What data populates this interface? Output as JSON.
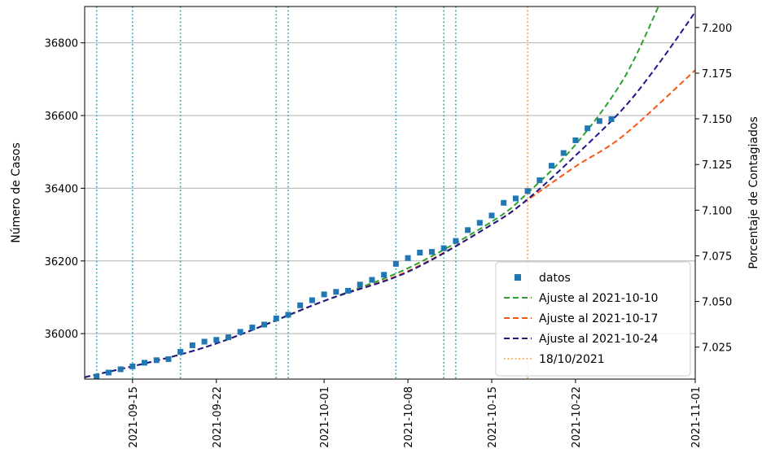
{
  "chart_data": {
    "type": "line",
    "ylabel": "Número de Casos",
    "y2label": "Porcentaje de Contagiados",
    "x_range": [
      "2021-09-11",
      "2021-11-01"
    ],
    "ylim": [
      35875,
      36900
    ],
    "y2lim": [
      7.0075,
      7.2115
    ],
    "x_ticks": [
      "2021-09-15",
      "2021-09-22",
      "2021-10-01",
      "2021-10-08",
      "2021-10-15",
      "2021-10-22",
      "2021-11-01"
    ],
    "y_ticks": [
      36000,
      36200,
      36400,
      36600,
      36800
    ],
    "y2_ticks": [
      "7.025",
      "7.050",
      "7.075",
      "7.100",
      "7.125",
      "7.150",
      "7.175",
      "7.200"
    ],
    "grid": "horizontal",
    "legend_position": "lower-right",
    "vertical_lines_teal": [
      "2021-09-12",
      "2021-09-15",
      "2021-09-19",
      "2021-09-27",
      "2021-09-28",
      "2021-10-07",
      "2021-10-11",
      "2021-10-12"
    ],
    "vertical_line_orange": "2021-10-18",
    "series": [
      {
        "name": "datos",
        "style": "square-marker",
        "color": "#1f77b4",
        "x": [
          "2021-09-12",
          "2021-09-13",
          "2021-09-14",
          "2021-09-15",
          "2021-09-16",
          "2021-09-17",
          "2021-09-18",
          "2021-09-19",
          "2021-09-20",
          "2021-09-21",
          "2021-09-22",
          "2021-09-23",
          "2021-09-24",
          "2021-09-25",
          "2021-09-26",
          "2021-09-27",
          "2021-09-28",
          "2021-09-29",
          "2021-09-30",
          "2021-10-01",
          "2021-10-02",
          "2021-10-03",
          "2021-10-04",
          "2021-10-05",
          "2021-10-06",
          "2021-10-07",
          "2021-10-08",
          "2021-10-09",
          "2021-10-10",
          "2021-10-11",
          "2021-10-12",
          "2021-10-13",
          "2021-10-14",
          "2021-10-15",
          "2021-10-16",
          "2021-10-17",
          "2021-10-18",
          "2021-10-19",
          "2021-10-20",
          "2021-10-21",
          "2021-10-22",
          "2021-10-23",
          "2021-10-24",
          "2021-10-25"
        ],
        "y": [
          35882,
          35893,
          35902,
          35910,
          35920,
          35927,
          35930,
          35950,
          35968,
          35978,
          35983,
          35990,
          36005,
          36017,
          36025,
          36042,
          36052,
          36078,
          36092,
          36108,
          36115,
          36118,
          36135,
          36148,
          36162,
          36192,
          36208,
          36223,
          36225,
          36235,
          36255,
          36285,
          36305,
          36325,
          36360,
          36372,
          36392,
          36422,
          36462,
          36497,
          36532,
          36565,
          36585,
          36590
        ]
      },
      {
        "name": "Ajuste al 2021-10-10",
        "style": "dashed",
        "color": "#2ca02c",
        "x": [
          "2021-09-11",
          "2021-09-21",
          "2021-10-01",
          "2021-10-08",
          "2021-10-15",
          "2021-10-18",
          "2021-10-22",
          "2021-10-26",
          "2021-10-29"
        ],
        "y": [
          35880,
          35962,
          36090,
          36180,
          36308,
          36387,
          36520,
          36700,
          36905
        ]
      },
      {
        "name": "Ajuste al 2021-10-17",
        "style": "dashed",
        "color": "#ff5511",
        "x": [
          "2021-09-11",
          "2021-09-21",
          "2021-10-01",
          "2021-10-08",
          "2021-10-15",
          "2021-10-18",
          "2021-10-22",
          "2021-10-26",
          "2021-11-01"
        ],
        "y": [
          35880,
          35962,
          36090,
          36172,
          36300,
          36368,
          36460,
          36545,
          36725
        ]
      },
      {
        "name": "Ajuste al 2021-10-24",
        "style": "dashed",
        "color": "#1a1a8c",
        "x": [
          "2021-09-11",
          "2021-09-21",
          "2021-10-01",
          "2021-10-08",
          "2021-10-15",
          "2021-10-18",
          "2021-10-22",
          "2021-10-26",
          "2021-10-29",
          "2021-11-01"
        ],
        "y": [
          35880,
          35962,
          36090,
          36170,
          36300,
          36370,
          36490,
          36620,
          36745,
          36885
        ]
      },
      {
        "name": "18/10/2021",
        "style": "dotted",
        "color": "#ff8a1c"
      }
    ]
  }
}
